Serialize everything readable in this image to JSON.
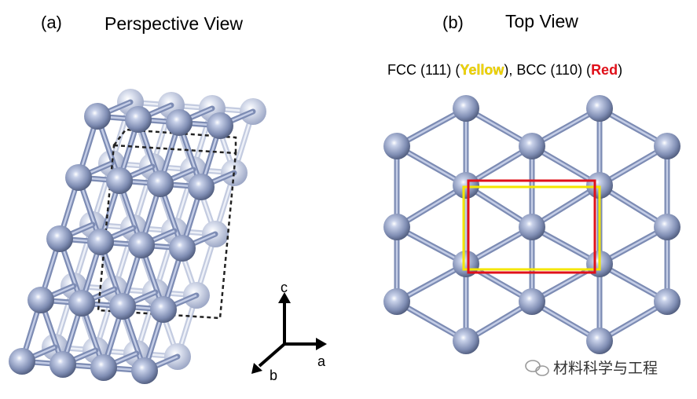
{
  "panels": [
    {
      "label": "(a)",
      "title": "Perspective View",
      "axes": {
        "c": "c",
        "a": "a",
        "b": "b"
      }
    },
    {
      "label": "(b)",
      "title": "Top View",
      "caption": [
        "FCC (111) (",
        "Yellow",
        "), BCC (110) (",
        "Red",
        ")"
      ]
    }
  ],
  "watermark": "材料科学与工程"
}
